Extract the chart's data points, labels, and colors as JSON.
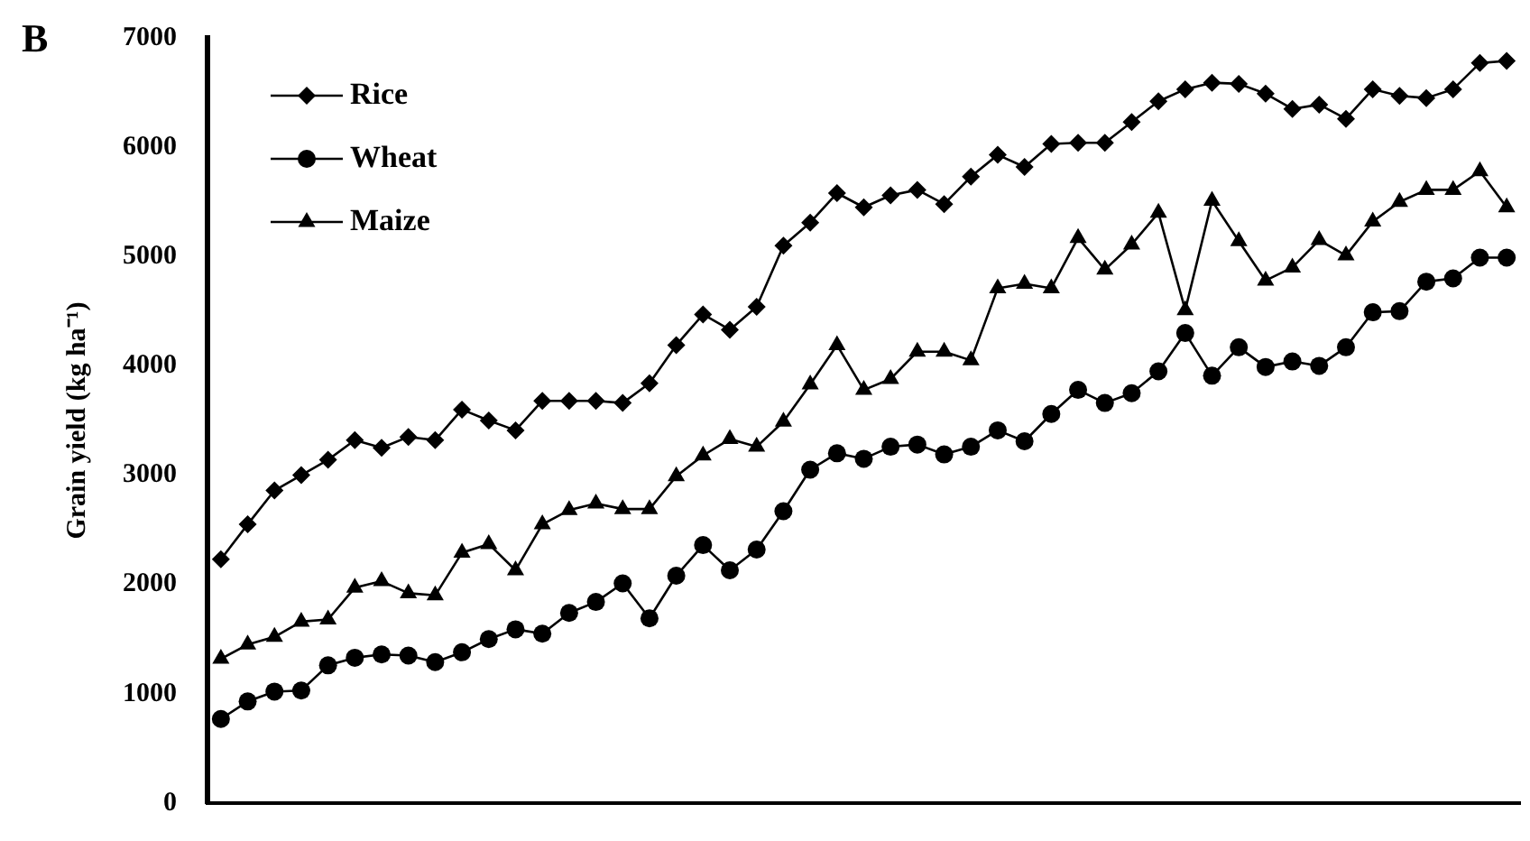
{
  "chart_data": {
    "type": "line",
    "ylabel": "Grain yield (kg ha⁻¹)",
    "annotations": [
      "B"
    ],
    "categories": [
      null,
      null,
      null,
      null,
      null,
      null,
      null,
      null,
      null,
      null,
      null,
      null,
      null,
      null,
      null,
      null,
      null,
      null,
      null,
      null,
      null,
      null,
      null,
      null,
      null,
      null,
      null,
      null,
      null,
      null,
      null,
      null,
      null,
      null,
      null,
      null,
      null,
      null,
      null,
      null,
      null,
      null,
      null,
      null,
      null,
      null,
      null,
      null,
      null
    ],
    "series": [
      {
        "name": "Rice",
        "color": "#000000",
        "marker": "diamond",
        "values": [
          2230,
          2550,
          2860,
          3000,
          3140,
          3320,
          3250,
          3350,
          3320,
          3600,
          3500,
          3410,
          3680,
          3680,
          3680,
          3660,
          3840,
          4190,
          4470,
          4330,
          4540,
          5100,
          5310,
          5580,
          5450,
          5560,
          5610,
          5480,
          5730,
          5930,
          5820,
          6030,
          6040,
          6040,
          6230,
          6420,
          6530,
          6590,
          6580,
          6490,
          6350,
          6390,
          6260,
          6530,
          6470,
          6450,
          6530,
          6770,
          6790
        ]
      },
      {
        "name": "Wheat",
        "color": "#000000",
        "marker": "circle",
        "values": [
          770,
          930,
          1020,
          1030,
          1260,
          1330,
          1360,
          1350,
          1290,
          1380,
          1500,
          1590,
          1550,
          1740,
          1840,
          2010,
          1690,
          2080,
          2360,
          2130,
          2320,
          2670,
          3050,
          3200,
          3150,
          3260,
          3280,
          3190,
          3260,
          3410,
          3310,
          3560,
          3780,
          3660,
          3750,
          3950,
          4300,
          3910,
          4170,
          3990,
          4040,
          4000,
          4170,
          4490,
          4500,
          4770,
          4800,
          4990,
          4990
        ]
      },
      {
        "name": "Maize",
        "color": "#000000",
        "marker": "triangle",
        "values": [
          1320,
          1450,
          1520,
          1660,
          1680,
          1970,
          2030,
          1920,
          1900,
          2290,
          2370,
          2130,
          2550,
          2680,
          2740,
          2690,
          2690,
          2990,
          3180,
          3330,
          3260,
          3490,
          3830,
          4190,
          3780,
          3880,
          4130,
          4130,
          4050,
          4710,
          4750,
          4710,
          5170,
          4880,
          5110,
          5400,
          4510,
          5510,
          5140,
          4780,
          4900,
          5150,
          5010,
          5320,
          5500,
          5610,
          5610,
          5780,
          5450
        ]
      }
    ],
    "ylim": [
      0,
      7000
    ],
    "yticks": [
      0,
      1000,
      2000,
      3000,
      4000,
      5000,
      6000,
      7000
    ],
    "tick_labels": "y",
    "legend": "top left",
    "grid": false,
    "line_style": "solid"
  }
}
